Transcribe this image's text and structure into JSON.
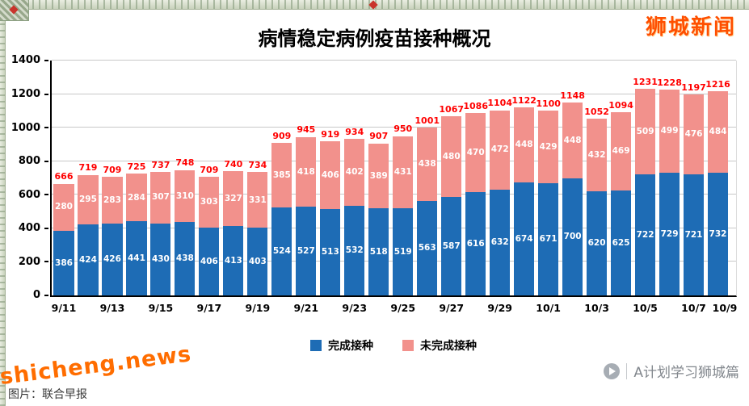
{
  "page": {
    "brand": "狮城新闻",
    "site_watermark": "shicheng.news",
    "source_caption": "图片：联合早报",
    "channel_watermark": "A计划学习狮城篇"
  },
  "chart_data": {
    "type": "bar",
    "stacked": true,
    "title": "病情稳定病例疫苗接种概况",
    "categories": [
      "9/11",
      "9/12",
      "9/13",
      "9/14",
      "9/15",
      "9/16",
      "9/17",
      "9/18",
      "9/19",
      "9/20",
      "9/21",
      "9/22",
      "9/23",
      "9/24",
      "9/25",
      "9/26",
      "9/27",
      "9/28",
      "9/29",
      "9/30",
      "10/1",
      "10/2",
      "10/3",
      "10/4",
      "10/5",
      "10/6",
      "10/7",
      "10/8"
    ],
    "x_tick_labels": [
      "9/11",
      "9/13",
      "9/15",
      "9/17",
      "9/19",
      "9/21",
      "9/23",
      "9/25",
      "9/27",
      "9/29",
      "10/1",
      "10/3",
      "10/5",
      "10/7",
      "10/9"
    ],
    "series": [
      {
        "name": "完成接种",
        "color": "#1e6cb5",
        "values": [
          386,
          424,
          426,
          441,
          430,
          438,
          406,
          413,
          403,
          524,
          527,
          513,
          532,
          518,
          519,
          563,
          587,
          616,
          632,
          674,
          671,
          700,
          620,
          625,
          722,
          729,
          721,
          732
        ]
      },
      {
        "name": "未完成接种",
        "color": "#f2918c",
        "values": [
          280,
          295,
          283,
          284,
          307,
          310,
          303,
          327,
          331,
          385,
          418,
          406,
          402,
          389,
          431,
          438,
          480,
          470,
          472,
          448,
          429,
          448,
          432,
          469,
          509,
          499,
          476,
          484
        ]
      }
    ],
    "totals": [
      666,
      719,
      709,
      725,
      737,
      748,
      709,
      740,
      734,
      909,
      945,
      919,
      934,
      907,
      950,
      1001,
      1067,
      1086,
      1104,
      1122,
      1100,
      1148,
      1052,
      1094,
      1231,
      1228,
      1197,
      1216
    ],
    "xlabel": "",
    "ylabel": "",
    "ylim": [
      0,
      1400
    ],
    "yticks": [
      0,
      200,
      400,
      600,
      800,
      1000,
      1200,
      1400
    ],
    "grid": true,
    "legend_position": "bottom",
    "colors": {
      "total_label": "#ff0000",
      "bar_label": "#ffffff",
      "axis": "#000000",
      "gridline": "#c8c8c8"
    }
  }
}
